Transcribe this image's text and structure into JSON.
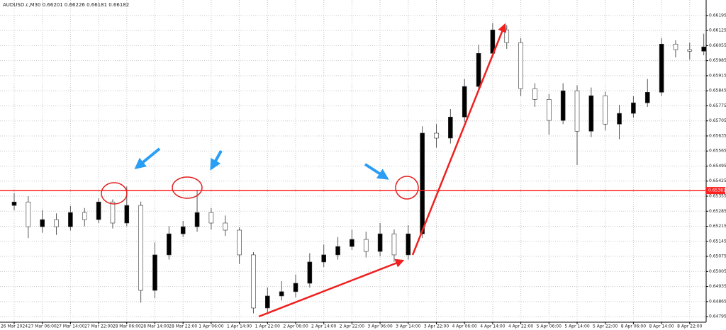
{
  "chart_data": {
    "type": "candlestick",
    "title": "AUDUSD.c,M30  0.66201 0.66226 0.66181 0.66182",
    "x": [
      "26 Mar 2024",
      null,
      "27 Mar 06:00",
      null,
      "27 Mar 14:00",
      null,
      "27 Mar 22:00",
      null,
      "28 Mar 06:00",
      null,
      "28 Mar 14:00",
      null,
      "28 Mar 22:00",
      null,
      "1 Apr 06:00",
      null,
      "1 Apr 14:00",
      null,
      "1 Apr 22:00",
      null,
      "2 Apr 06:00",
      null,
      "2 Apr 14:00",
      null,
      "2 Apr 22:00",
      null,
      "3 Apr 06:00",
      null,
      "3 Apr 14:00",
      null,
      "3 Apr 22:00",
      null,
      "4 Apr 06:00",
      null,
      "4 Apr 14:00",
      null,
      "4 Apr 22:00",
      null,
      "5 Apr 06:00",
      null,
      "5 Apr 14:00",
      null,
      "5 Apr 22:00",
      null,
      "8 Apr 06:00",
      null,
      "8 Apr 14:00",
      null,
      "8 Apr 22:00",
      null
    ],
    "open": [
      0.65312,
      0.65328,
      0.65213,
      0.65246,
      0.65213,
      0.65279,
      0.65246,
      0.65328,
      0.6523,
      0.65312,
      0.64917,
      0.65082,
      0.6518,
      0.65213,
      0.65279,
      0.6523,
      0.65197,
      0.65082,
      0.64835,
      0.64891,
      0.64911,
      0.6495,
      0.65049,
      0.65082,
      0.65121,
      0.65154,
      0.65098,
      0.6518,
      0.65082,
      0.6518,
      0.65648,
      0.65625,
      0.65723,
      0.65865,
      0.66019,
      0.66128,
      0.66069,
      0.65855,
      0.65805,
      0.65707,
      0.65845,
      0.65657,
      0.65822,
      0.6569,
      0.6574,
      0.65789,
      0.65838,
      0.66062,
      0.66036,
      0.66029
    ],
    "high": [
      0.6537,
      0.65355,
      0.6529,
      0.65275,
      0.6531,
      0.653,
      0.65345,
      0.6534,
      0.654,
      0.6533,
      0.6514,
      0.65215,
      0.6524,
      0.65385,
      0.653,
      0.65265,
      0.6521,
      0.65095,
      0.6493,
      0.6496,
      0.6499,
      0.6509,
      0.6513,
      0.65165,
      0.652,
      0.6519,
      0.6523,
      0.652,
      0.6522,
      0.6568,
      0.6569,
      0.6576,
      0.659,
      0.6606,
      0.6616,
      0.6615,
      0.6609,
      0.6588,
      0.6583,
      0.6588,
      0.6587,
      0.6586,
      0.6584,
      0.6578,
      0.6582,
      0.659,
      0.6609,
      0.6608,
      0.6607,
      0.6611
    ],
    "low": [
      0.6529,
      0.6516,
      0.65185,
      0.65175,
      0.65195,
      0.65215,
      0.6523,
      0.65205,
      0.65215,
      0.6486,
      0.6488,
      0.6506,
      0.65165,
      0.6519,
      0.652,
      0.6517,
      0.6504,
      0.6481,
      0.64815,
      0.6487,
      0.64885,
      0.6493,
      0.65025,
      0.6506,
      0.65105,
      0.6507,
      0.65075,
      0.6505,
      0.6506,
      0.6516,
      0.6558,
      0.656,
      0.657,
      0.6584,
      0.66,
      0.6604,
      0.6582,
      0.6577,
      0.6564,
      0.6569,
      0.655,
      0.6563,
      0.6566,
      0.6562,
      0.6572,
      0.6577,
      0.6582,
      0.66,
      0.6599,
      0.6601
    ],
    "close": [
      0.65328,
      0.65213,
      0.65246,
      0.65213,
      0.65279,
      0.65246,
      0.65328,
      0.6523,
      0.65312,
      0.64917,
      0.65082,
      0.6518,
      0.65213,
      0.65279,
      0.6523,
      0.65197,
      0.65082,
      0.64835,
      0.64891,
      0.64911,
      0.6495,
      0.65049,
      0.65082,
      0.65121,
      0.65154,
      0.65098,
      0.6518,
      0.65082,
      0.6518,
      0.65648,
      0.65625,
      0.65723,
      0.65865,
      0.66019,
      0.66128,
      0.66069,
      0.65855,
      0.65805,
      0.65707,
      0.65845,
      0.65657,
      0.65822,
      0.6569,
      0.6574,
      0.65789,
      0.65838,
      0.66062,
      0.66036,
      0.66029,
      0.66049
    ],
    "up_color": "#000000",
    "down_color": "#ffffff",
    "wick_color": "#555555",
    "ylim": [
      0.64769,
      0.66267
    ],
    "yticks": [
      0.66195,
      0.66125,
      0.66055,
      0.65985,
      0.65915,
      0.65845,
      0.65775,
      0.65705,
      0.65635,
      0.65565,
      0.65495,
      0.65425,
      0.65355,
      0.65285,
      0.65215,
      0.65145,
      0.65075,
      0.65005,
      0.64935,
      0.64865,
      0.64795
    ],
    "hline": {
      "value": 0.65381,
      "label": "0.65381",
      "color": "#ff2020"
    },
    "grid": true
  }
}
